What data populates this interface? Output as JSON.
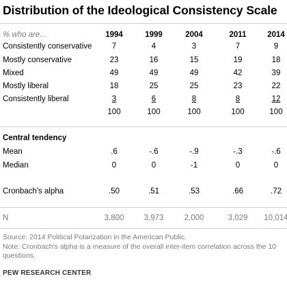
{
  "title": "Distribution of the Ideological Consistency Scale",
  "header": {
    "label": "% who are...",
    "years": [
      "1994",
      "1999",
      "2004",
      "2011",
      "2014"
    ]
  },
  "rows": [
    {
      "label": "Consistently conservative",
      "values": [
        "7",
        "4",
        "3",
        "7",
        "9"
      ]
    },
    {
      "label": "Mostly conservative",
      "values": [
        "23",
        "16",
        "15",
        "19",
        "18"
      ]
    },
    {
      "label": "Mixed",
      "values": [
        "49",
        "49",
        "49",
        "42",
        "39"
      ]
    },
    {
      "label": "Mostly liberal",
      "values": [
        "18",
        "25",
        "25",
        "23",
        "22"
      ]
    },
    {
      "label": "Consistently liberal",
      "values": [
        "3",
        "6",
        "8",
        "8",
        "12"
      ]
    }
  ],
  "totals": [
    "100",
    "100",
    "100",
    "100",
    "100"
  ],
  "central": {
    "heading": "Central tendency",
    "mean": {
      "label": "Mean",
      "values": [
        ".6",
        "-.6",
        "-.9",
        "-.3",
        "-.6"
      ]
    },
    "median": {
      "label": "Median",
      "values": [
        "0",
        "0",
        "-1",
        "0",
        "0"
      ]
    }
  },
  "alpha": {
    "label": "Cronbach's alpha",
    "values": [
      ".50",
      ".51",
      ".53",
      ".66",
      ".72"
    ]
  },
  "n": {
    "label": "N",
    "values": [
      "3,800",
      "3,973",
      "2,000",
      "3,029",
      "10,014"
    ]
  },
  "source": "Source: 2014 Political Polarization in the American Public.",
  "note": "Note: Cronbach's alpha is a measure of the overall inter-item correlation across the 10 questions.",
  "footer": "PEW RESEARCH CENTER"
}
